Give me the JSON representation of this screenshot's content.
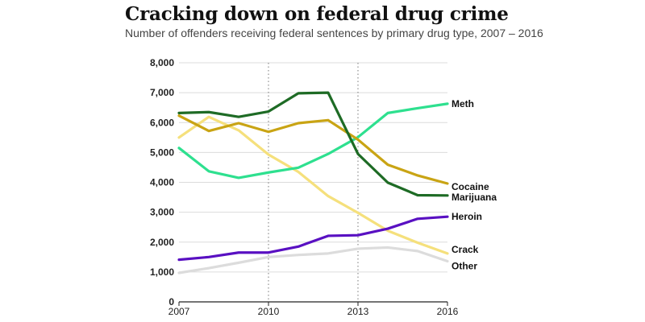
{
  "chart_data": {
    "type": "line",
    "title": "Cracking down on federal drug crime",
    "subtitle": "Number of offenders receiving federal sentences by primary drug type, 2007 – 2016",
    "xlabel": "",
    "ylabel": "",
    "x": [
      2007,
      2008,
      2009,
      2010,
      2011,
      2012,
      2013,
      2014,
      2015,
      2016
    ],
    "xticks": [
      "2007",
      "2010",
      "2013",
      "2016"
    ],
    "ylim": [
      0,
      8000
    ],
    "yticks": [
      "0",
      "1,000",
      "2,000",
      "3,000",
      "4,000",
      "5,000",
      "6,000",
      "7,000",
      "8,000"
    ],
    "ytick_values": [
      0,
      1000,
      2000,
      3000,
      4000,
      5000,
      6000,
      7000,
      8000
    ],
    "grid": "dotted vertical lines at 2010 and 2013",
    "legend": "direct labels at right end of lines",
    "series": [
      {
        "name": "Meth",
        "color": "#2ee08f",
        "values": [
          5150,
          4370,
          4150,
          4330,
          4490,
          4950,
          5510,
          6320,
          6480,
          6630
        ]
      },
      {
        "name": "Cocaine",
        "color": "#c9a414",
        "values": [
          6230,
          5720,
          5980,
          5690,
          5980,
          6080,
          5430,
          4590,
          4230,
          3960
        ]
      },
      {
        "name": "Marijuana",
        "color": "#1e6b25",
        "values": [
          6320,
          6350,
          6190,
          6370,
          6980,
          7000,
          4950,
          3990,
          3570,
          3560
        ]
      },
      {
        "name": "Heroin",
        "color": "#5910c2",
        "values": [
          1410,
          1500,
          1650,
          1650,
          1850,
          2210,
          2230,
          2450,
          2780,
          2850
        ]
      },
      {
        "name": "Crack",
        "color": "#f5e07c",
        "values": [
          5500,
          6190,
          5740,
          4930,
          4350,
          3540,
          2980,
          2380,
          1980,
          1620
        ]
      },
      {
        "name": "Other",
        "color": "#dcdcdc",
        "values": [
          970,
          1130,
          1310,
          1500,
          1570,
          1620,
          1780,
          1820,
          1700,
          1360
        ]
      }
    ]
  }
}
